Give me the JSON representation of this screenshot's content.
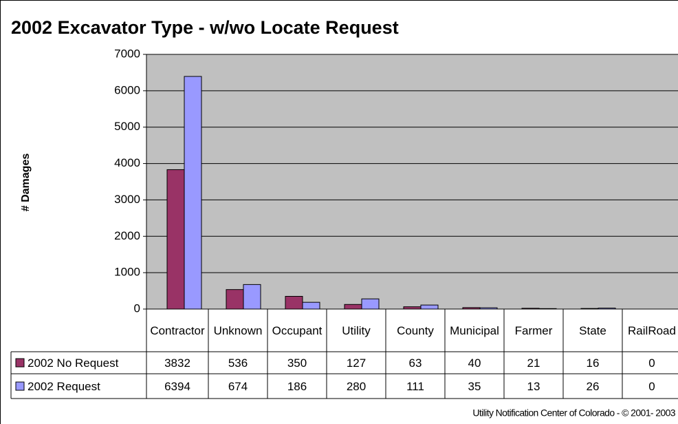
{
  "chart_data": {
    "type": "bar",
    "title": "2002 Excavator Type - w/wo Locate Request",
    "y_label": "# Damages",
    "footer": "Utility Notification Center of Colorado - © 2001- 2003",
    "categories": [
      "Contractor",
      "Unknown",
      "Occupant",
      "Utility",
      "County",
      "Municipal",
      "Farmer",
      "State",
      "RailRoad"
    ],
    "series": [
      {
        "name": "2002 No Request",
        "color": "#993366",
        "values": [
          3832,
          536,
          350,
          127,
          63,
          40,
          21,
          16,
          0
        ]
      },
      {
        "name": "2002 Request",
        "color": "#9999ff",
        "values": [
          6394,
          674,
          186,
          280,
          111,
          35,
          13,
          26,
          0
        ]
      }
    ],
    "ylim": [
      0,
      7000
    ],
    "yticks": [
      0,
      1000,
      2000,
      3000,
      4000,
      5000,
      6000,
      7000
    ],
    "grid": true
  }
}
